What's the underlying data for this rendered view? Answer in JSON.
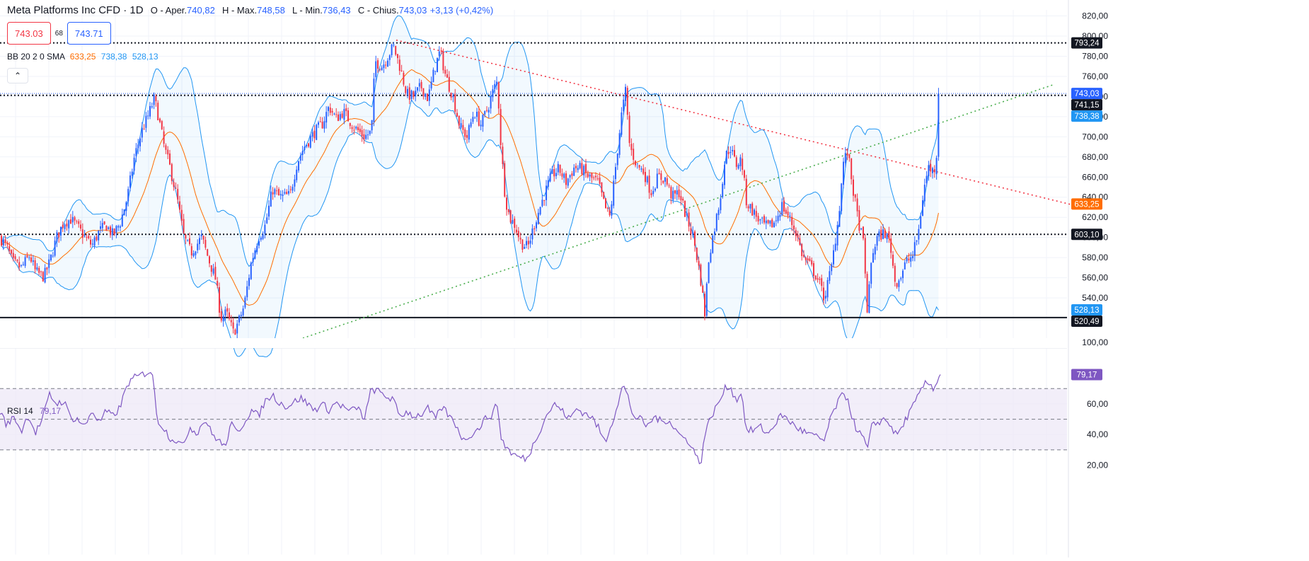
{
  "header": {
    "symbol": "Meta Platforms Inc CFD · 1D",
    "open_label": "O - Aper.",
    "open": "740,82",
    "high_label": "H - Max.",
    "high": "748,58",
    "low_label": "L - Min.",
    "low": "736,43",
    "close_label": "C - Chius.",
    "close": "743,03",
    "change": "+3,13 (+0,42%)"
  },
  "trade": {
    "sell": "743.03",
    "spread": "68",
    "buy": "743.71"
  },
  "bb": {
    "label": "BB 20 2 0 SMA",
    "basis": "633,25",
    "upper": "738,38",
    "lower": "528,13"
  },
  "rsi": {
    "label": "RSI 14",
    "value": "79,17"
  },
  "collapse_icon": "chevron-up-icon",
  "colors": {
    "up": "#2962ff",
    "down": "#f23645",
    "basis": "#ff6d00",
    "band": "#2196f3",
    "rsi": "#7e57c2",
    "rsi_fill": "#ede7f6",
    "trend_down": "#f23645",
    "trend_up": "#4caf50"
  },
  "chart_data": [
    {
      "type": "candlestick",
      "interval": "1D",
      "ylim": [
        500,
        826
      ],
      "y_ticks": [
        "820,00",
        "800,00",
        "780,00",
        "760,00",
        "740,00",
        "720,00",
        "700,00",
        "680,00",
        "660,00",
        "640,00",
        "620,00",
        "600,00",
        "580,00",
        "560,00",
        "540,00"
      ],
      "bottom_tick": "100,00",
      "anchors": [
        [
          0,
          600
        ],
        [
          10,
          590
        ],
        [
          18,
          575
        ],
        [
          30,
          570
        ],
        [
          42,
          582
        ],
        [
          50,
          566
        ],
        [
          62,
          561
        ],
        [
          70,
          575
        ],
        [
          80,
          600
        ],
        [
          90,
          615
        ],
        [
          100,
          618
        ],
        [
          110,
          610
        ],
        [
          120,
          600
        ],
        [
          130,
          592
        ],
        [
          140,
          606
        ],
        [
          150,
          612
        ],
        [
          160,
          602
        ],
        [
          170,
          615
        ],
        [
          180,
          640
        ],
        [
          190,
          680
        ],
        [
          200,
          705
        ],
        [
          210,
          722
        ],
        [
          218,
          738
        ],
        [
          224,
          720
        ],
        [
          232,
          690
        ],
        [
          240,
          670
        ],
        [
          250,
          640
        ],
        [
          260,
          600
        ],
        [
          270,
          585
        ],
        [
          285,
          600
        ],
        [
          295,
          578
        ],
        [
          305,
          558
        ],
        [
          312,
          520
        ],
        [
          320,
          525
        ],
        [
          330,
          505
        ],
        [
          338,
          518
        ],
        [
          345,
          532
        ],
        [
          355,
          575
        ],
        [
          365,
          600
        ],
        [
          375,
          612
        ],
        [
          385,
          648
        ],
        [
          395,
          640
        ],
        [
          410,
          642
        ],
        [
          420,
          675
        ],
        [
          430,
          690
        ],
        [
          445,
          705
        ],
        [
          455,
          712
        ],
        [
          465,
          730
        ],
        [
          475,
          718
        ],
        [
          485,
          725
        ],
        [
          500,
          710
        ],
        [
          515,
          700
        ],
        [
          525,
          705
        ],
        [
          530,
          775
        ],
        [
          540,
          770
        ],
        [
          548,
          780
        ],
        [
          556,
          790
        ],
        [
          565,
          770
        ],
        [
          575,
          742
        ],
        [
          585,
          740
        ],
        [
          595,
          750
        ],
        [
          605,
          738
        ],
        [
          615,
          770
        ],
        [
          622,
          785
        ],
        [
          630,
          760
        ],
        [
          640,
          740
        ],
        [
          650,
          710
        ],
        [
          660,
          700
        ],
        [
          670,
          725
        ],
        [
          680,
          712
        ],
        [
          690,
          730
        ],
        [
          698,
          748
        ],
        [
          703,
          755
        ],
        [
          708,
          690
        ],
        [
          714,
          640
        ],
        [
          720,
          620
        ],
        [
          728,
          612
        ],
        [
          736,
          595
        ],
        [
          746,
          590
        ],
        [
          756,
          615
        ],
        [
          768,
          640
        ],
        [
          780,
          662
        ],
        [
          790,
          668
        ],
        [
          800,
          655
        ],
        [
          812,
          670
        ],
        [
          822,
          668
        ],
        [
          832,
          660
        ],
        [
          845,
          655
        ],
        [
          855,
          630
        ],
        [
          862,
          620
        ],
        [
          870,
          670
        ],
        [
          878,
          720
        ],
        [
          884,
          745
        ],
        [
          890,
          690
        ],
        [
          900,
          672
        ],
        [
          910,
          665
        ],
        [
          920,
          645
        ],
        [
          930,
          660
        ],
        [
          940,
          658
        ],
        [
          950,
          640
        ],
        [
          960,
          645
        ],
        [
          970,
          620
        ],
        [
          980,
          600
        ],
        [
          990,
          560
        ],
        [
          996,
          525
        ],
        [
          1002,
          582
        ],
        [
          1010,
          610
        ],
        [
          1018,
          640
        ],
        [
          1025,
          680
        ],
        [
          1032,
          690
        ],
        [
          1040,
          672
        ],
        [
          1048,
          678
        ],
        [
          1055,
          635
        ],
        [
          1065,
          625
        ],
        [
          1075,
          615
        ],
        [
          1085,
          610
        ],
        [
          1095,
          615
        ],
        [
          1105,
          632
        ],
        [
          1115,
          620
        ],
        [
          1125,
          605
        ],
        [
          1135,
          580
        ],
        [
          1145,
          572
        ],
        [
          1155,
          560
        ],
        [
          1165,
          540
        ],
        [
          1175,
          570
        ],
        [
          1185,
          620
        ],
        [
          1192,
          675
        ],
        [
          1198,
          685
        ],
        [
          1205,
          650
        ],
        [
          1212,
          620
        ],
        [
          1220,
          595
        ],
        [
          1226,
          525
        ],
        [
          1232,
          582
        ],
        [
          1240,
          600
        ],
        [
          1250,
          605
        ],
        [
          1258,
          595
        ],
        [
          1265,
          555
        ],
        [
          1272,
          560
        ],
        [
          1280,
          575
        ],
        [
          1290,
          582
        ],
        [
          1298,
          605
        ],
        [
          1305,
          645
        ],
        [
          1312,
          670
        ],
        [
          1320,
          665
        ],
        [
          1325,
          690
        ],
        [
          1329,
          743
        ]
      ],
      "last_close": 743.03,
      "price_labels": [
        {
          "value": 793.24,
          "text": "793,24",
          "style": "dotted-black"
        },
        {
          "value": 743.03,
          "text": "743,03",
          "style": "current"
        },
        {
          "value": 741.15,
          "text": "741,15",
          "style": "dotted-black"
        },
        {
          "value": 738.38,
          "text": "738,38",
          "style": "band-upper"
        },
        {
          "value": 633.25,
          "text": "633,25",
          "style": "basis"
        },
        {
          "value": 603.1,
          "text": "603,10",
          "style": "dotted-black"
        },
        {
          "value": 528.13,
          "text": "528,13",
          "style": "band-lower"
        },
        {
          "value": 520.49,
          "text": "520,49",
          "style": "solid-black"
        }
      ],
      "trendlines": [
        {
          "name": "resistance",
          "from": [
            560,
            796
          ],
          "to": [
            1518,
            632
          ],
          "style": "dotted-red"
        },
        {
          "name": "support",
          "from": [
            428,
            500
          ],
          "to": [
            1490,
            752
          ],
          "style": "dotted-green"
        }
      ],
      "horizontal_lines": [
        793.24,
        741.15,
        603.1,
        520.49
      ]
    },
    {
      "type": "line",
      "name": "RSI 14",
      "ylim": [
        17,
        90
      ],
      "y_ticks": [
        "60,00",
        "40,00",
        "20,00"
      ],
      "bands": {
        "upper": 70,
        "middle": 50,
        "lower": 30
      },
      "points": [
        [
          0,
          55
        ],
        [
          10,
          46
        ],
        [
          20,
          52
        ],
        [
          30,
          42
        ],
        [
          40,
          53
        ],
        [
          50,
          41
        ],
        [
          60,
          50
        ],
        [
          70,
          66
        ],
        [
          80,
          60
        ],
        [
          90,
          62
        ],
        [
          100,
          51
        ],
        [
          110,
          50
        ],
        [
          120,
          45
        ],
        [
          130,
          56
        ],
        [
          140,
          48
        ],
        [
          150,
          55
        ],
        [
          160,
          52
        ],
        [
          170,
          58
        ],
        [
          180,
          73
        ],
        [
          190,
          77
        ],
        [
          200,
          79
        ],
        [
          210,
          81
        ],
        [
          215,
          82
        ],
        [
          222,
          50
        ],
        [
          232,
          44
        ],
        [
          240,
          38
        ],
        [
          250,
          36
        ],
        [
          258,
          32
        ],
        [
          268,
          45
        ],
        [
          278,
          41
        ],
        [
          290,
          50
        ],
        [
          300,
          40
        ],
        [
          310,
          36
        ],
        [
          318,
          31
        ],
        [
          326,
          47
        ],
        [
          335,
          41
        ],
        [
          345,
          48
        ],
        [
          355,
          56
        ],
        [
          365,
          52
        ],
        [
          375,
          62
        ],
        [
          385,
          66
        ],
        [
          395,
          61
        ],
        [
          405,
          58
        ],
        [
          415,
          61
        ],
        [
          425,
          64
        ],
        [
          435,
          60
        ],
        [
          445,
          56
        ],
        [
          455,
          60
        ],
        [
          465,
          56
        ],
        [
          475,
          61
        ],
        [
          485,
          58
        ],
        [
          495,
          55
        ],
        [
          505,
          58
        ],
        [
          515,
          50
        ],
        [
          525,
          70
        ],
        [
          535,
          68
        ],
        [
          545,
          65
        ],
        [
          555,
          63
        ],
        [
          565,
          52
        ],
        [
          575,
          55
        ],
        [
          585,
          52
        ],
        [
          595,
          53
        ],
        [
          605,
          57
        ],
        [
          615,
          50
        ],
        [
          625,
          58
        ],
        [
          635,
          52
        ],
        [
          645,
          46
        ],
        [
          655,
          36
        ],
        [
          665,
          40
        ],
        [
          675,
          43
        ],
        [
          685,
          50
        ],
        [
          695,
          53
        ],
        [
          703,
          60
        ],
        [
          708,
          38
        ],
        [
          715,
          32
        ],
        [
          725,
          27
        ],
        [
          735,
          25
        ],
        [
          745,
          24
        ],
        [
          755,
          35
        ],
        [
          765,
          45
        ],
        [
          775,
          55
        ],
        [
          785,
          60
        ],
        [
          795,
          55
        ],
        [
          805,
          50
        ],
        [
          815,
          57
        ],
        [
          825,
          54
        ],
        [
          835,
          52
        ],
        [
          845,
          45
        ],
        [
          855,
          35
        ],
        [
          865,
          48
        ],
        [
          875,
          63
        ],
        [
          880,
          72
        ],
        [
          886,
          67
        ],
        [
          895,
          52
        ],
        [
          905,
          50
        ],
        [
          915,
          45
        ],
        [
          925,
          52
        ],
        [
          935,
          48
        ],
        [
          945,
          50
        ],
        [
          955,
          43
        ],
        [
          965,
          38
        ],
        [
          975,
          35
        ],
        [
          985,
          25
        ],
        [
          990,
          20
        ],
        [
          996,
          40
        ],
        [
          1005,
          52
        ],
        [
          1015,
          60
        ],
        [
          1025,
          70
        ],
        [
          1032,
          72
        ],
        [
          1040,
          62
        ],
        [
          1048,
          68
        ],
        [
          1055,
          42
        ],
        [
          1065,
          43
        ],
        [
          1075,
          45
        ],
        [
          1085,
          40
        ],
        [
          1095,
          47
        ],
        [
          1105,
          53
        ],
        [
          1115,
          49
        ],
        [
          1125,
          45
        ],
        [
          1135,
          42
        ],
        [
          1145,
          40
        ],
        [
          1155,
          38
        ],
        [
          1165,
          36
        ],
        [
          1175,
          52
        ],
        [
          1185,
          62
        ],
        [
          1192,
          66
        ],
        [
          1198,
          64
        ],
        [
          1205,
          50
        ],
        [
          1212,
          42
        ],
        [
          1220,
          38
        ],
        [
          1226,
          30
        ],
        [
          1232,
          45
        ],
        [
          1240,
          48
        ],
        [
          1250,
          50
        ],
        [
          1258,
          47
        ],
        [
          1265,
          40
        ],
        [
          1272,
          42
        ],
        [
          1280,
          50
        ],
        [
          1290,
          58
        ],
        [
          1298,
          65
        ],
        [
          1305,
          72
        ],
        [
          1312,
          74
        ],
        [
          1320,
          70
        ],
        [
          1325,
          76
        ],
        [
          1329,
          79.17
        ]
      ]
    }
  ]
}
